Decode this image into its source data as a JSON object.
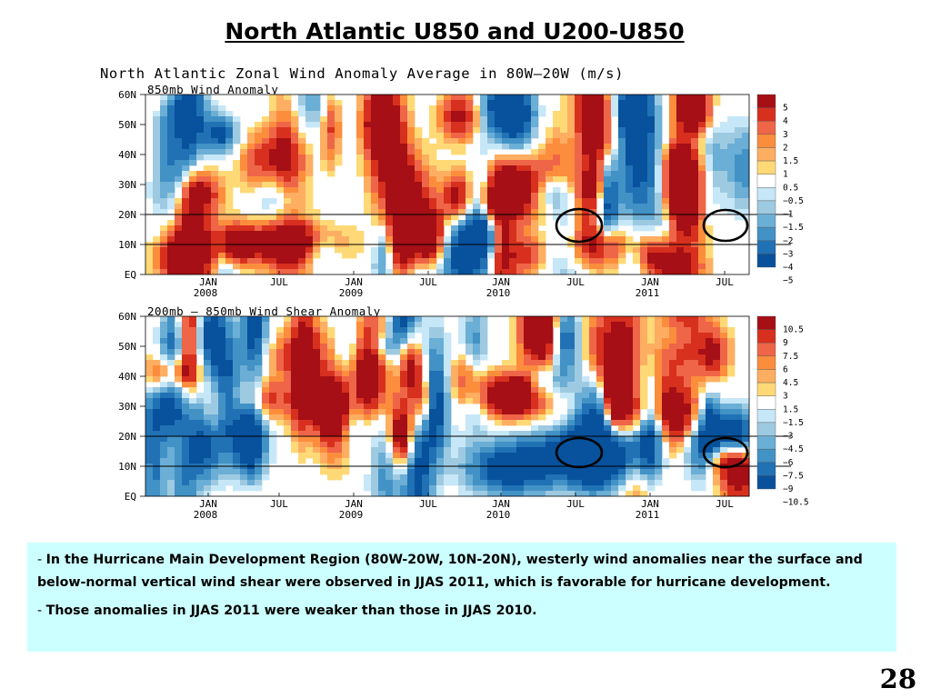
{
  "slide": {
    "title": "North Atlantic U850 and U200-U850",
    "figure_title": "North Atlantic Zonal Wind Anomaly Average in 80W—20W (m/s)",
    "page_number": "28"
  },
  "chart_data": [
    {
      "type": "heatmap",
      "title": "850mb Wind Anomaly",
      "y_ticks": [
        "60N",
        "50N",
        "40N",
        "30N",
        "20N",
        "10N",
        "EQ"
      ],
      "x_ticks": [
        {
          "month": "JAN",
          "year": "2008"
        },
        {
          "month": "JUL",
          "year": ""
        },
        {
          "month": "JAN",
          "year": "2009"
        },
        {
          "month": "JUL",
          "year": ""
        },
        {
          "month": "JAN",
          "year": "2010"
        },
        {
          "month": "JUL",
          "year": ""
        },
        {
          "month": "JAN",
          "year": "2011"
        },
        {
          "month": "JUL",
          "year": ""
        }
      ],
      "colorbar_labels": [
        "5",
        "4",
        "3",
        "2",
        "1.5",
        "1",
        "0.5",
        "−0.5",
        "−1",
        "−1.5",
        "−2",
        "−3",
        "−4",
        "−5"
      ],
      "highlight_band": [
        "10N",
        "20N"
      ],
      "circled_periods": [
        "JUL 2010",
        "JUL 2011"
      ]
    },
    {
      "type": "heatmap",
      "title": "200mb — 850mb Wind Shear Anomaly",
      "y_ticks": [
        "60N",
        "50N",
        "40N",
        "30N",
        "20N",
        "10N",
        "EQ"
      ],
      "x_ticks": [
        {
          "month": "JAN",
          "year": "2008"
        },
        {
          "month": "JUL",
          "year": ""
        },
        {
          "month": "JAN",
          "year": "2009"
        },
        {
          "month": "JUL",
          "year": ""
        },
        {
          "month": "JAN",
          "year": "2010"
        },
        {
          "month": "JUL",
          "year": ""
        },
        {
          "month": "JAN",
          "year": "2011"
        },
        {
          "month": "JUL",
          "year": ""
        }
      ],
      "colorbar_labels": [
        "10.5",
        "9",
        "7.5",
        "6",
        "4.5",
        "3",
        "1.5",
        "−1.5",
        "−3",
        "−4.5",
        "−6",
        "−7.5",
        "−9",
        "−10.5"
      ],
      "highlight_band": [
        "10N",
        "20N"
      ],
      "circled_periods": [
        "JUL 2010",
        "JUL 2011"
      ]
    }
  ],
  "colorbar_colors": [
    "#a50f15",
    "#d7301f",
    "#ef6548",
    "#fc8d3c",
    "#fdae61",
    "#fed976",
    "#ffffff",
    "#c6e7f7",
    "#9ecae1",
    "#6baed6",
    "#4292c6",
    "#2171b5",
    "#08519c"
  ],
  "notes": [
    {
      "dash": "- ",
      "text": "In the Hurricane Main Development Region (80W-20W, 10N-20N), westerly wind anomalies near the surface and below-normal vertical wind shear were observed in JJAS 2011, which is favorable for hurricane development."
    },
    {
      "dash": "- ",
      "text": "Those anomalies in JJAS 2011 were weaker than those in JJAS 2010."
    }
  ]
}
